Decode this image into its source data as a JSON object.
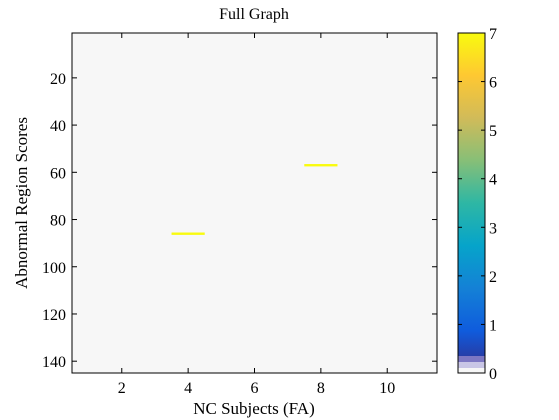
{
  "chart_data": {
    "type": "heatmap",
    "title": "Full Graph",
    "xlabel": "NC Subjects (FA)",
    "ylabel": "Abnormal Region Scores",
    "xlim": [
      0.5,
      11.5
    ],
    "ylim": [
      145,
      1
    ],
    "x_ticks": [
      2,
      4,
      6,
      8,
      10
    ],
    "y_ticks": [
      20,
      40,
      60,
      80,
      100,
      120,
      140
    ],
    "background_value": 0,
    "cells": [
      {
        "x": 4,
        "y": 86,
        "value": 7
      },
      {
        "x": 8,
        "y": 57,
        "value": 7
      }
    ],
    "colorbar": {
      "range": [
        0,
        7
      ],
      "ticks": [
        0,
        1,
        2,
        3,
        4,
        5,
        6,
        7
      ],
      "colormap": "parula-like",
      "stops": [
        "#352a87",
        "#0f5cdd",
        "#1481d6",
        "#06a4ca",
        "#2eb7a4",
        "#87bf77",
        "#d1bb59",
        "#fec832",
        "#f9fb0e"
      ]
    },
    "grid": false,
    "legend": "none"
  }
}
